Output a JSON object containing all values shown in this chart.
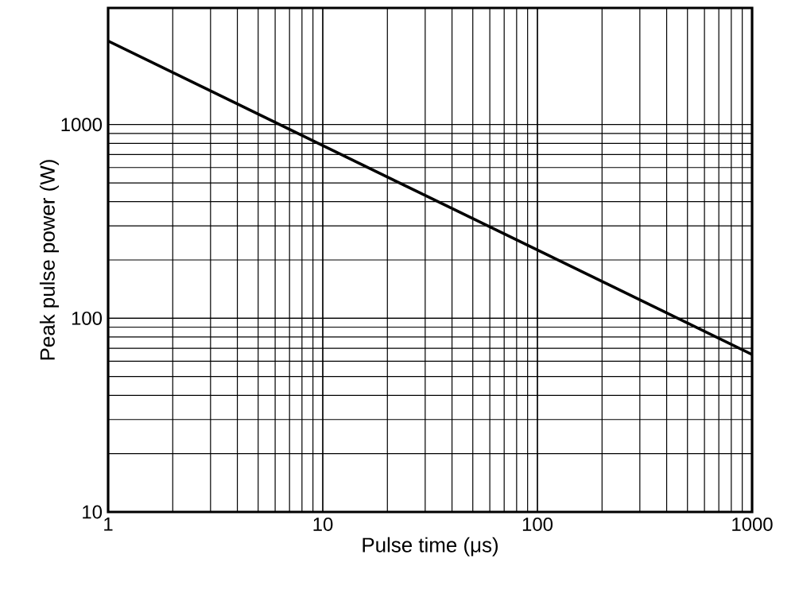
{
  "chart_data": {
    "type": "line",
    "xlabel": "Pulse time (μs)",
    "ylabel": "Peak pulse power (W)",
    "log": "xy",
    "grid": true,
    "marker": "none",
    "line_style": "solid",
    "x": [
      1,
      1000
    ],
    "series": [
      {
        "color": "#000000",
        "values": [
          2700,
          65
        ]
      }
    ],
    "xlim": [
      1,
      1000
    ],
    "ylim": [
      10,
      4000
    ],
    "xticks": [
      1,
      10,
      100,
      1000
    ],
    "yticks": [
      10,
      100,
      1000
    ]
  }
}
